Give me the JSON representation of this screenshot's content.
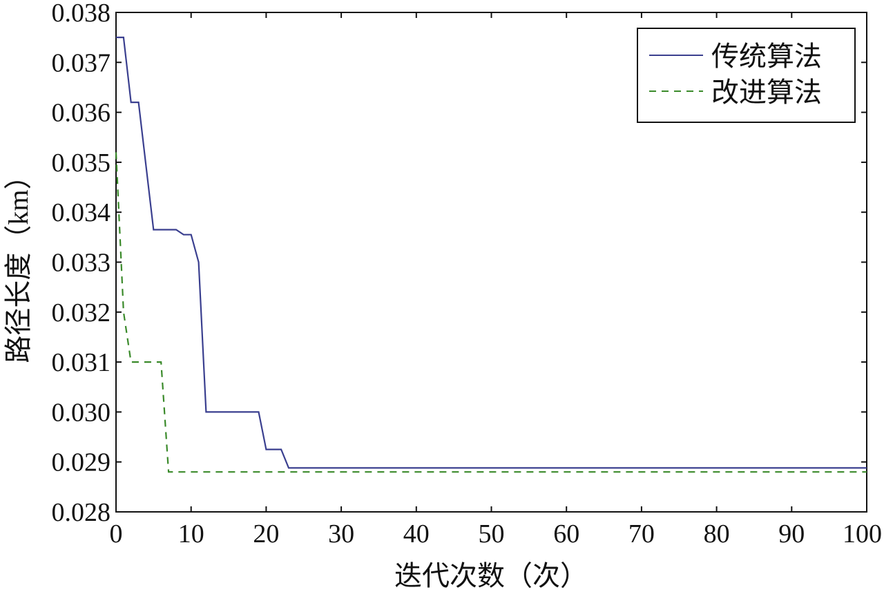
{
  "chart_data": {
    "type": "line",
    "title": "",
    "xlabel": "迭代次数（次）",
    "ylabel": "路径长度（km）",
    "xlim": [
      0,
      100
    ],
    "ylim": [
      0.028,
      0.038
    ],
    "xticks": [
      0,
      10,
      20,
      30,
      40,
      50,
      60,
      70,
      80,
      90,
      100
    ],
    "xtick_labels": [
      "0",
      "10",
      "20",
      "30",
      "40",
      "50",
      "60",
      "70",
      "80",
      "90",
      "100"
    ],
    "yticks": [
      0.028,
      0.029,
      0.03,
      0.031,
      0.032,
      0.033,
      0.034,
      0.035,
      0.036,
      0.037,
      0.038
    ],
    "ytick_labels": [
      "0.028",
      "0.029",
      "0.030",
      "0.031",
      "0.032",
      "0.033",
      "0.034",
      "0.035",
      "0.036",
      "0.037",
      "0.038"
    ],
    "grid": false,
    "legend_position": "top-right",
    "series": [
      {
        "name": "传统算法",
        "color": "#3a3f8f",
        "style": "solid",
        "x": [
          0,
          1,
          2,
          3,
          5,
          8,
          9,
          10,
          11,
          12,
          13,
          19,
          20,
          22,
          23,
          100
        ],
        "y": [
          0.0375,
          0.0375,
          0.0362,
          0.0362,
          0.03365,
          0.03365,
          0.03355,
          0.03355,
          0.033,
          0.03,
          0.03,
          0.03,
          0.02925,
          0.02925,
          0.02888,
          0.02888
        ]
      },
      {
        "name": "改进算法",
        "color": "#3a8a2a",
        "style": "dashed",
        "x": [
          0,
          1,
          2,
          6,
          7,
          100
        ],
        "y": [
          0.0352,
          0.032,
          0.031,
          0.031,
          0.0288,
          0.0288
        ]
      }
    ]
  }
}
